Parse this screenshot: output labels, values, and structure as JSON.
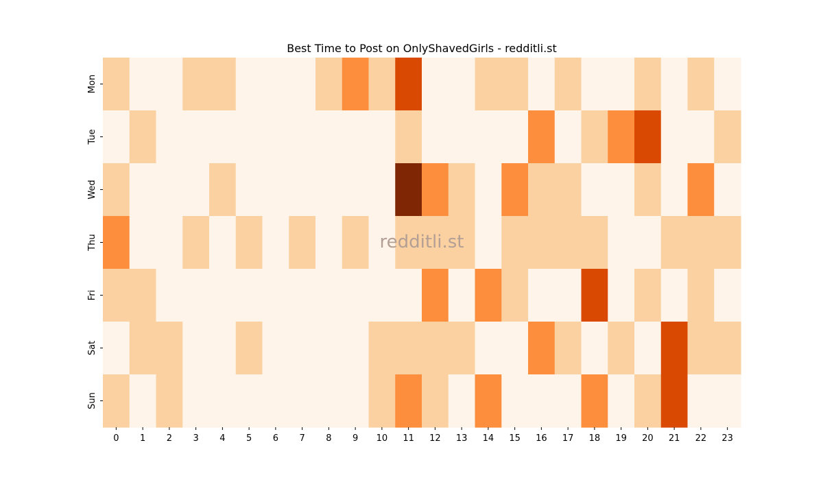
{
  "chart_data": {
    "type": "heatmap",
    "title": "Best Time to Post on OnlyShavedGirls - redditli.st",
    "xlabel": "",
    "ylabel": "",
    "x_categories": [
      "0",
      "1",
      "2",
      "3",
      "4",
      "5",
      "6",
      "7",
      "8",
      "9",
      "10",
      "11",
      "12",
      "13",
      "14",
      "15",
      "16",
      "17",
      "18",
      "19",
      "20",
      "21",
      "22",
      "23"
    ],
    "y_categories": [
      "Mon",
      "Tue",
      "Wed",
      "Thu",
      "Fri",
      "Sat",
      "Sun"
    ],
    "values": [
      [
        1,
        0,
        0,
        1,
        1,
        0,
        0,
        0,
        1,
        2,
        1,
        3,
        0,
        0,
        1,
        1,
        0,
        1,
        0,
        0,
        1,
        0,
        1,
        0
      ],
      [
        0,
        1,
        0,
        0,
        0,
        0,
        0,
        0,
        0,
        0,
        0,
        1,
        0,
        0,
        0,
        0,
        2,
        0,
        1,
        2,
        3,
        0,
        0,
        1
      ],
      [
        1,
        0,
        0,
        0,
        1,
        0,
        0,
        0,
        0,
        0,
        0,
        4,
        2,
        1,
        0,
        2,
        1,
        1,
        0,
        0,
        1,
        0,
        2,
        0
      ],
      [
        2,
        0,
        0,
        1,
        0,
        1,
        0,
        1,
        0,
        1,
        0,
        1,
        1,
        1,
        0,
        1,
        1,
        1,
        1,
        0,
        0,
        1,
        1,
        1
      ],
      [
        1,
        1,
        0,
        0,
        0,
        0,
        0,
        0,
        0,
        0,
        0,
        0,
        2,
        0,
        2,
        1,
        0,
        0,
        3,
        0,
        1,
        0,
        1,
        0
      ],
      [
        0,
        1,
        1,
        0,
        0,
        1,
        0,
        0,
        0,
        0,
        1,
        1,
        1,
        1,
        0,
        0,
        2,
        1,
        0,
        1,
        0,
        3,
        1,
        1
      ],
      [
        1,
        0,
        1,
        0,
        0,
        0,
        0,
        0,
        0,
        0,
        1,
        2,
        1,
        0,
        2,
        0,
        0,
        0,
        2,
        0,
        1,
        3,
        0,
        0
      ]
    ],
    "colormap": "Oranges",
    "color_levels": [
      "#fef4e9",
      "#fbd1a2",
      "#fd8e3d",
      "#da4902",
      "#7f2704"
    ],
    "colorbar": false,
    "grid": false,
    "watermark": "redditli.st"
  }
}
